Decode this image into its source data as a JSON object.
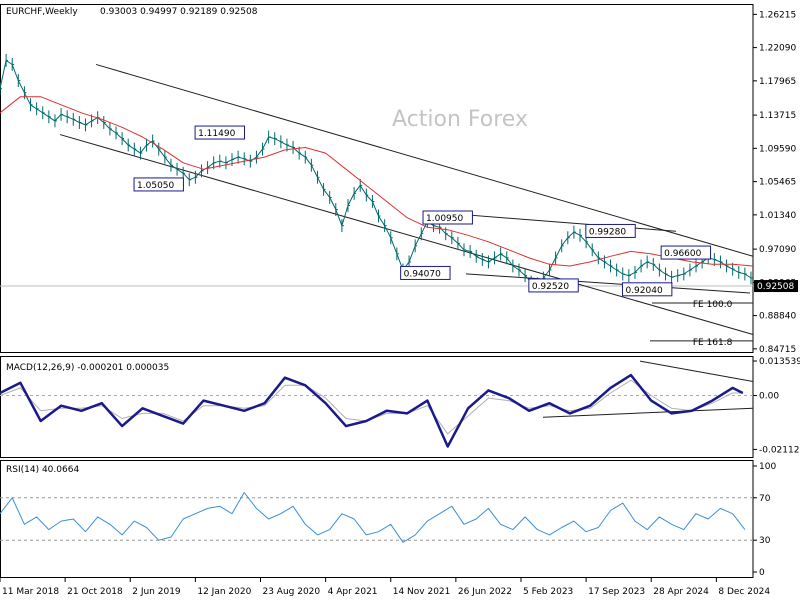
{
  "header": {
    "symbol": "EURCHF,Weekly",
    "ohlc": "0.93003 0.94997 0.92189 0.92508"
  },
  "watermark": "Action Forex",
  "colors": {
    "price": "#006a6a",
    "ma": "#e03030",
    "macd": "#1a1a8c",
    "signal": "#b0b0b0",
    "rsi": "#3a8fd8",
    "trend": "#202020"
  },
  "chart_data": [
    {
      "type": "line",
      "panel": "price",
      "ylim": [
        0.842,
        1.275
      ],
      "y_ticks": [
        "1.26215",
        "1.22090",
        "1.17965",
        "1.13715",
        "1.09590",
        "1.05465",
        "1.01340",
        "0.97090",
        "0.92965",
        "0.88840",
        "0.84715"
      ],
      "last_price_label": "0.92508",
      "series": [
        {
          "type": "line",
          "x": [
            0,
            3,
            6,
            9,
            12,
            15,
            18,
            21,
            24,
            27,
            30,
            33,
            36,
            39,
            42,
            45,
            48,
            51,
            54,
            57,
            60,
            63,
            66,
            69,
            72,
            75,
            78,
            81,
            84,
            87,
            90,
            93,
            96,
            99,
            102,
            105,
            108,
            111,
            114,
            117,
            120,
            123,
            126,
            129,
            132,
            135,
            138,
            141,
            144,
            147,
            150,
            153,
            156,
            159,
            162,
            165,
            168,
            171,
            174,
            177,
            180,
            183,
            186,
            189,
            192,
            195,
            198,
            201,
            204,
            207,
            210,
            213,
            216,
            219,
            222,
            225,
            228,
            231,
            234,
            237,
            240,
            243,
            246,
            249,
            252,
            255,
            258,
            261,
            264,
            267,
            270,
            273,
            276,
            279,
            282,
            285,
            288,
            291,
            294,
            297,
            300,
            303,
            306,
            309,
            312,
            315,
            318,
            321,
            324,
            327,
            330,
            333,
            336,
            339,
            342,
            345,
            348,
            351,
            354,
            357,
            360,
            363,
            366,
            369
          ],
          "values": [
            1.17,
            1.205,
            1.2,
            1.18,
            1.165,
            1.15,
            1.145,
            1.14,
            1.135,
            1.13,
            1.138,
            1.135,
            1.132,
            1.128,
            1.125,
            1.13,
            1.134,
            1.128,
            1.12,
            1.115,
            1.108,
            1.1,
            1.095,
            1.09,
            1.1,
            1.105,
            1.095,
            1.085,
            1.075,
            1.07,
            1.065,
            1.057,
            1.06,
            1.068,
            1.072,
            1.078,
            1.08,
            1.078,
            1.082,
            1.085,
            1.083,
            1.08,
            1.085,
            1.095,
            1.11,
            1.108,
            1.104,
            1.1,
            1.097,
            1.09,
            1.085,
            1.075,
            1.06,
            1.045,
            1.035,
            1.02,
            1.0,
            1.025,
            1.04,
            1.05,
            1.038,
            1.03,
            1.012,
            1.0,
            0.985,
            0.965,
            0.945,
            0.955,
            0.975,
            0.99,
            1.005,
            1.0,
            0.998,
            0.99,
            0.985,
            0.978,
            0.97,
            0.968,
            0.962,
            0.958,
            0.955,
            0.96,
            0.965,
            0.96,
            0.95,
            0.945,
            0.938,
            0.93,
            0.928,
            0.935,
            0.945,
            0.96,
            0.975,
            0.985,
            0.992,
            0.988,
            0.98,
            0.97,
            0.96,
            0.955,
            0.95,
            0.945,
            0.94,
            0.938,
            0.942,
            0.95,
            0.955,
            0.952,
            0.945,
            0.94,
            0.936,
            0.938,
            0.94,
            0.945,
            0.95,
            0.955,
            0.96,
            0.958,
            0.955,
            0.95,
            0.946,
            0.942,
            0.94,
            0.935
          ]
        },
        {
          "type": "line",
          "x": [
            0,
            10,
            20,
            30,
            40,
            50,
            60,
            70,
            80,
            90,
            100,
            110,
            120,
            130,
            140,
            150,
            160,
            170,
            180,
            190,
            200,
            210,
            220,
            230,
            240,
            250,
            260,
            270,
            280,
            290,
            300,
            310,
            320,
            330,
            340,
            350,
            360,
            370
          ],
          "values": [
            1.14,
            1.16,
            1.16,
            1.15,
            1.14,
            1.132,
            1.122,
            1.11,
            1.095,
            1.078,
            1.07,
            1.075,
            1.08,
            1.085,
            1.094,
            1.097,
            1.09,
            1.07,
            1.05,
            1.03,
            1.01,
            0.998,
            0.995,
            0.988,
            0.98,
            0.97,
            0.96,
            0.952,
            0.95,
            0.955,
            0.962,
            0.968,
            0.965,
            0.96,
            0.955,
            0.952,
            0.952,
            0.95
          ]
        }
      ],
      "annotations": [
        {
          "label": "1.11490",
          "x": 108,
          "y": 1.1149
        },
        {
          "label": "1.05050",
          "x": 78,
          "y": 1.0505
        },
        {
          "label": "1.00950",
          "x": 220,
          "y": 1.0095
        },
        {
          "label": "0.99280",
          "x": 300,
          "y": 0.9928
        },
        {
          "label": "0.96600",
          "x": 337,
          "y": 0.966
        },
        {
          "label": "0.94070",
          "x": 209,
          "y": 0.9407
        },
        {
          "label": "0.92520",
          "x": 272,
          "y": 0.9252
        },
        {
          "label": "0.92040",
          "x": 318,
          "y": 0.9204
        },
        {
          "label": "FE 100.0",
          "x": 366,
          "y": 0.904
        },
        {
          "label": "FE 161.8",
          "x": 366,
          "y": 0.857
        }
      ]
    },
    {
      "type": "line",
      "panel": "macd",
      "title": "MACD(12,26,9) -0.000201 0.000035",
      "ylim": [
        -0.0245,
        0.0155
      ],
      "y_ticks": [
        "0.013539",
        "0.00",
        "-0.021129"
      ],
      "series": [
        {
          "type": "line",
          "x": [
            0,
            10,
            20,
            30,
            40,
            50,
            60,
            70,
            80,
            90,
            100,
            110,
            120,
            130,
            140,
            150,
            160,
            170,
            180,
            190,
            200,
            210,
            220,
            230,
            240,
            250,
            260,
            270,
            280,
            290,
            300,
            310,
            320,
            330,
            340,
            350,
            360,
            365
          ],
          "values": [
            0.001,
            0.005,
            -0.01,
            -0.004,
            -0.006,
            -0.003,
            -0.012,
            -0.005,
            -0.008,
            -0.011,
            -0.002,
            -0.004,
            -0.006,
            -0.003,
            0.007,
            0.004,
            -0.003,
            -0.012,
            -0.01,
            -0.006,
            -0.007,
            -0.002,
            -0.02,
            -0.005,
            0.002,
            -0.001,
            -0.006,
            -0.003,
            -0.007,
            -0.004,
            0.003,
            0.008,
            -0.002,
            -0.007,
            -0.006,
            -0.002,
            0.003,
            0.001
          ]
        },
        {
          "type": "line",
          "x": [
            0,
            10,
            20,
            30,
            40,
            50,
            60,
            70,
            80,
            90,
            100,
            110,
            120,
            130,
            140,
            150,
            160,
            170,
            180,
            190,
            200,
            210,
            220,
            230,
            240,
            250,
            260,
            270,
            280,
            290,
            300,
            310,
            320,
            330,
            340,
            350,
            360,
            365
          ],
          "values": [
            0.0,
            0.003,
            -0.006,
            -0.005,
            -0.005,
            -0.004,
            -0.009,
            -0.007,
            -0.007,
            -0.01,
            -0.004,
            -0.004,
            -0.005,
            -0.004,
            0.004,
            0.004,
            -0.001,
            -0.009,
            -0.01,
            -0.007,
            -0.007,
            -0.004,
            -0.015,
            -0.008,
            -0.001,
            -0.002,
            -0.005,
            -0.004,
            -0.006,
            -0.005,
            0.001,
            0.006,
            0.0,
            -0.005,
            -0.006,
            -0.003,
            0.001,
            0.001
          ]
        }
      ]
    },
    {
      "type": "line",
      "panel": "rsi",
      "title": "RSI(14) 40.0664",
      "ylim": [
        0,
        100
      ],
      "y_ticks": [
        "100",
        "70",
        "30",
        "0"
      ],
      "series": [
        {
          "type": "line",
          "x": [
            0,
            6,
            12,
            18,
            24,
            30,
            36,
            42,
            48,
            54,
            60,
            66,
            72,
            78,
            84,
            90,
            96,
            102,
            108,
            114,
            120,
            126,
            132,
            138,
            144,
            150,
            156,
            162,
            168,
            174,
            180,
            186,
            192,
            198,
            204,
            210,
            216,
            222,
            228,
            234,
            240,
            246,
            252,
            258,
            264,
            270,
            276,
            282,
            288,
            294,
            300,
            306,
            312,
            318,
            324,
            330,
            336,
            342,
            348,
            354,
            360,
            366
          ],
          "values": [
            55,
            70,
            45,
            52,
            40,
            48,
            50,
            38,
            52,
            45,
            35,
            48,
            42,
            30,
            33,
            50,
            55,
            60,
            62,
            55,
            75,
            60,
            50,
            55,
            62,
            45,
            35,
            40,
            55,
            50,
            35,
            38,
            45,
            28,
            35,
            48,
            55,
            62,
            45,
            50,
            60,
            45,
            40,
            52,
            40,
            35,
            42,
            48,
            38,
            42,
            58,
            65,
            48,
            40,
            52,
            45,
            40,
            55,
            50,
            60,
            55,
            40
          ]
        }
      ]
    }
  ],
  "x_axis": {
    "labels": [
      "11 Mar 2018",
      "21 Oct 2018",
      "2 Jun 2019",
      "12 Jan 2020",
      "23 Aug 2020",
      "4 Apr 2021",
      "14 Nov 2021",
      "26 Jun 2022",
      "5 Feb 2023",
      "17 Sep 2023",
      "28 Apr 2024",
      "8 Dec 2024"
    ],
    "label_index": [
      0,
      32,
      64,
      96,
      128,
      160,
      192,
      224,
      256,
      288,
      320,
      352
    ]
  }
}
